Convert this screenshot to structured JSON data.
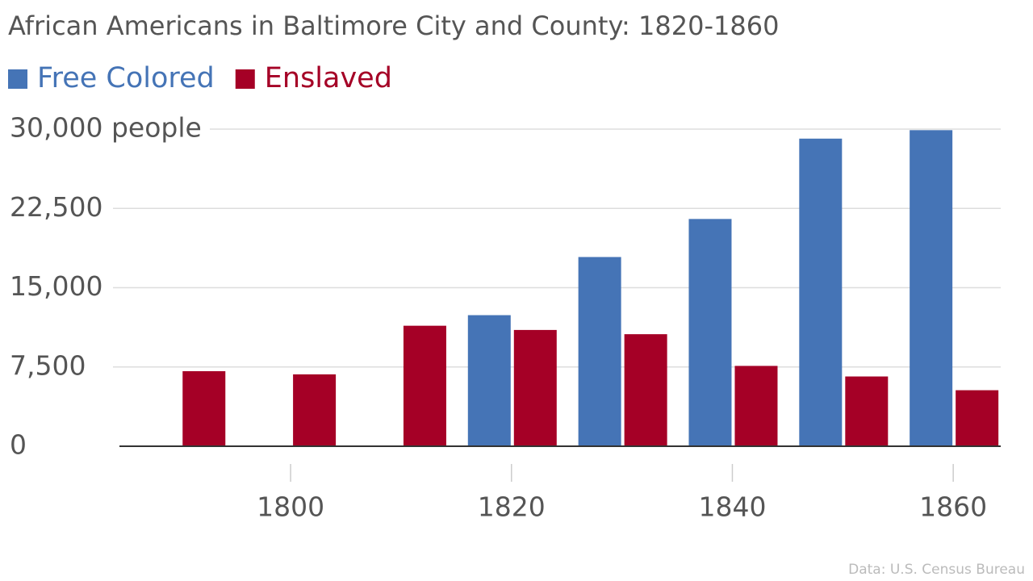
{
  "chart_data": {
    "type": "bar",
    "title": "African Americans in Baltimore City and County: 1820-1860",
    "source": "Data: U.S. Census Bureau",
    "x": [
      1790,
      1800,
      1810,
      1820,
      1830,
      1840,
      1850,
      1860
    ],
    "series": [
      {
        "name": "Free Colored",
        "color": "#4574b6",
        "values": [
          null,
          null,
          null,
          12400,
          17900,
          21500,
          29100,
          29900
        ]
      },
      {
        "name": "Enslaved",
        "color": "#a50026",
        "values": [
          7100,
          6800,
          11400,
          11000,
          10600,
          7600,
          6600,
          5300
        ]
      }
    ],
    "xlim": [
      1784.5,
      1864.3
    ],
    "xticks": [
      1800,
      1820,
      1840,
      1860
    ],
    "ylim": [
      0,
      30000
    ],
    "yticks": [
      0,
      {
        "value": 7500,
        "label": "7,500"
      },
      {
        "value": 15000,
        "label": "15,000"
      },
      {
        "value": 22500,
        "label": "22,500"
      },
      {
        "value": 30000,
        "label": "30,000 people"
      }
    ],
    "grid": true
  }
}
